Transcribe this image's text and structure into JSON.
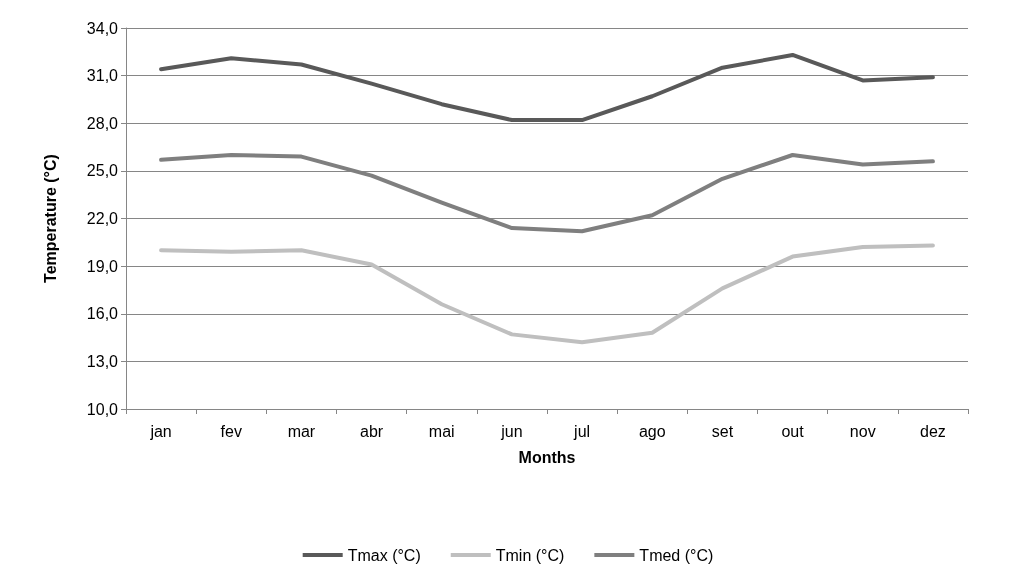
{
  "chart_data": {
    "type": "line",
    "xlabel": "Months",
    "ylabel": "Temperature (°C)",
    "categories": [
      "jan",
      "fev",
      "mar",
      "abr",
      "mai",
      "jun",
      "jul",
      "ago",
      "set",
      "out",
      "nov",
      "dez"
    ],
    "series": [
      {
        "name": "Tmax (°C)",
        "color": "#595959",
        "values": [
          31.4,
          32.1,
          31.7,
          30.5,
          29.2,
          28.2,
          28.2,
          29.7,
          31.5,
          32.3,
          30.7,
          30.9
        ]
      },
      {
        "name": "Tmin (°C)",
        "color": "#bfbfbf",
        "values": [
          20.0,
          19.9,
          20.0,
          19.1,
          16.6,
          14.7,
          14.2,
          14.8,
          17.6,
          19.6,
          20.2,
          20.3
        ]
      },
      {
        "name": "Tmed (°C)",
        "color": "#7f7f7f",
        "values": [
          25.7,
          26.0,
          25.9,
          24.7,
          23.0,
          21.4,
          21.2,
          22.2,
          24.5,
          26.0,
          25.4,
          25.6
        ]
      }
    ],
    "ylim": [
      10,
      34
    ],
    "yticks": [
      {
        "value": 10,
        "label": "10,0"
      },
      {
        "value": 13,
        "label": "13,0"
      },
      {
        "value": 16,
        "label": "16,0"
      },
      {
        "value": 19,
        "label": "19,0"
      },
      {
        "value": 22,
        "label": "22,0"
      },
      {
        "value": 25,
        "label": "25,0"
      },
      {
        "value": 28,
        "label": "28,0"
      },
      {
        "value": 31,
        "label": "31,0"
      },
      {
        "value": 34,
        "label": "34,0"
      }
    ],
    "grid": "y",
    "legend": "bottom",
    "marker": "none",
    "line_style": "solid"
  }
}
